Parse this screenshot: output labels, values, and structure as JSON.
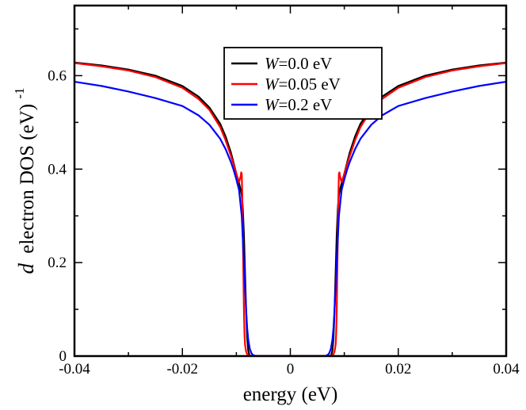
{
  "chart_data": {
    "type": "line",
    "title": "",
    "xlabel": "energy (eV)",
    "ylabel": {
      "prefix": "d",
      "main": "electron DOS (eV)",
      "superscript": "-1"
    },
    "xlim": [
      -0.04,
      0.04
    ],
    "ylim": [
      0,
      0.75
    ],
    "xticks": [
      -0.04,
      -0.02,
      0,
      0.02,
      0.04
    ],
    "xtick_labels": [
      "-0.04",
      "-0.02",
      "0",
      "0.02",
      "0.04"
    ],
    "yticks": [
      0,
      0.2,
      0.4,
      0.6
    ],
    "ytick_labels": [
      "0",
      "0.2",
      "0.4",
      "0.6"
    ],
    "grid": false,
    "legend": {
      "placement": "top-center",
      "entries": [
        {
          "symbol": "W",
          "rest": "=0.0 eV"
        },
        {
          "symbol": "W",
          "rest": "=0.05 eV"
        },
        {
          "symbol": "W",
          "rest": "=0.2 eV"
        }
      ]
    },
    "series": [
      {
        "name": "W=0.0 eV",
        "color": "#000000",
        "x": [
          -0.04,
          -0.035,
          -0.03,
          -0.025,
          -0.02,
          -0.017,
          -0.015,
          -0.013,
          -0.012,
          -0.011,
          -0.0105,
          -0.01,
          -0.0095,
          -0.009,
          -0.0088,
          -0.0086,
          -0.0084,
          -0.0082,
          -0.008,
          -0.0078,
          -0.0076,
          -0.0075,
          -0.0074,
          0.0074,
          0.0075,
          0.0076,
          0.0078,
          0.008,
          0.0082,
          0.0084,
          0.0086,
          0.0088,
          0.009,
          0.0095,
          0.01,
          0.0105,
          0.011,
          0.012,
          0.013,
          0.015,
          0.017,
          0.02,
          0.025,
          0.03,
          0.035,
          0.04
        ],
        "y": [
          0.628,
          0.622,
          0.613,
          0.6,
          0.578,
          0.555,
          0.532,
          0.497,
          0.47,
          0.435,
          0.413,
          0.39,
          0.37,
          0.345,
          0.315,
          0.26,
          0.18,
          0.1,
          0.04,
          0.012,
          0.003,
          0.001,
          0.0,
          0.0,
          0.001,
          0.003,
          0.012,
          0.04,
          0.1,
          0.18,
          0.26,
          0.315,
          0.345,
          0.37,
          0.39,
          0.413,
          0.435,
          0.47,
          0.497,
          0.532,
          0.555,
          0.578,
          0.6,
          0.613,
          0.622,
          0.628
        ]
      },
      {
        "name": "W=0.05 eV",
        "color": "#ff0000",
        "x": [
          -0.04,
          -0.035,
          -0.03,
          -0.025,
          -0.02,
          -0.017,
          -0.015,
          -0.013,
          -0.012,
          -0.011,
          -0.0105,
          -0.01,
          -0.0095,
          -0.0092,
          -0.0091,
          -0.009,
          -0.0089,
          -0.0088,
          -0.0087,
          -0.0086,
          -0.0085,
          -0.0084,
          -0.0082,
          -0.008,
          -0.0078,
          -0.0075,
          -0.007,
          0.007,
          0.0075,
          0.0078,
          0.008,
          0.0082,
          0.0084,
          0.0085,
          0.0086,
          0.0087,
          0.0088,
          0.0089,
          0.009,
          0.0091,
          0.0092,
          0.0095,
          0.01,
          0.0105,
          0.011,
          0.012,
          0.013,
          0.015,
          0.017,
          0.02,
          0.025,
          0.03,
          0.035,
          0.04
        ],
        "y": [
          0.627,
          0.62,
          0.611,
          0.597,
          0.574,
          0.55,
          0.527,
          0.49,
          0.462,
          0.428,
          0.41,
          0.39,
          0.372,
          0.385,
          0.393,
          0.39,
          0.34,
          0.26,
          0.18,
          0.1,
          0.05,
          0.025,
          0.01,
          0.004,
          0.002,
          0.001,
          0.0,
          0.0,
          0.001,
          0.002,
          0.004,
          0.01,
          0.025,
          0.05,
          0.1,
          0.18,
          0.26,
          0.34,
          0.39,
          0.393,
          0.385,
          0.372,
          0.39,
          0.41,
          0.428,
          0.462,
          0.49,
          0.527,
          0.55,
          0.574,
          0.597,
          0.611,
          0.62,
          0.627
        ]
      },
      {
        "name": "W=0.2 eV",
        "color": "#0000ff",
        "x": [
          -0.04,
          -0.035,
          -0.03,
          -0.025,
          -0.02,
          -0.017,
          -0.015,
          -0.013,
          -0.012,
          -0.011,
          -0.0105,
          -0.01,
          -0.0095,
          -0.009,
          -0.0088,
          -0.0086,
          -0.0084,
          -0.0082,
          -0.008,
          -0.0078,
          -0.0075,
          -0.0072,
          -0.007,
          -0.0065,
          0.0065,
          0.007,
          0.0072,
          0.0075,
          0.0078,
          0.008,
          0.0082,
          0.0084,
          0.0086,
          0.0088,
          0.009,
          0.0095,
          0.01,
          0.0105,
          0.011,
          0.012,
          0.013,
          0.015,
          0.017,
          0.02,
          0.025,
          0.03,
          0.035,
          0.04
        ],
        "y": [
          0.587,
          0.578,
          0.566,
          0.552,
          0.535,
          0.515,
          0.495,
          0.465,
          0.443,
          0.415,
          0.398,
          0.378,
          0.355,
          0.3,
          0.25,
          0.2,
          0.15,
          0.1,
          0.06,
          0.035,
          0.015,
          0.006,
          0.003,
          0.0,
          0.0,
          0.003,
          0.006,
          0.015,
          0.035,
          0.06,
          0.1,
          0.15,
          0.2,
          0.25,
          0.3,
          0.355,
          0.378,
          0.398,
          0.415,
          0.443,
          0.465,
          0.495,
          0.515,
          0.535,
          0.552,
          0.566,
          0.578,
          0.587
        ]
      }
    ]
  }
}
